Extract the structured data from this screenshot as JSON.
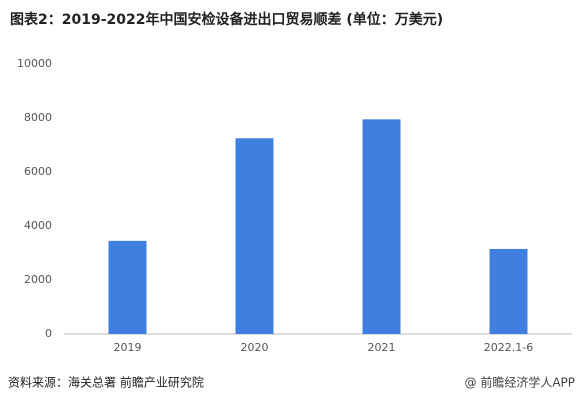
{
  "chart_data": {
    "type": "bar",
    "title": "图表2：2019-2022年中国安检设备进出口贸易顺差 (单位：万美元)",
    "categories": [
      "2019",
      "2020",
      "2021",
      "2022.1-6"
    ],
    "values": [
      3450,
      7250,
      7950,
      3150
    ],
    "color": "#3f7fdf",
    "ylim": [
      0,
      10000
    ],
    "yticks": [
      0,
      2000,
      4000,
      6000,
      8000,
      10000
    ],
    "grid": false,
    "source": "资料来源：海关总署 前瞻产业研究院",
    "watermark": "@ 前瞻经济学人APP"
  }
}
